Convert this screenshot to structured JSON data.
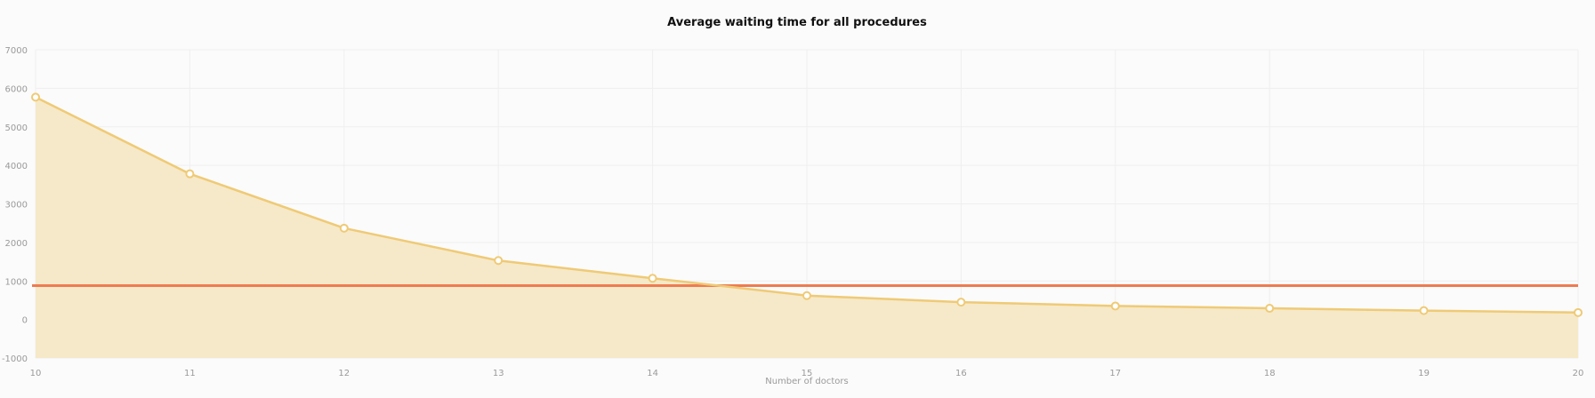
{
  "chart_data": {
    "type": "area",
    "title": "Average waiting time for all procedures",
    "xlabel": "Number of doctors",
    "ylabel": "",
    "x": [
      10,
      11,
      12,
      13,
      14,
      15,
      16,
      17,
      18,
      19,
      20
    ],
    "xlim": [
      10,
      20
    ],
    "ylim": [
      -1000,
      7000
    ],
    "y_ticks": [
      -1000,
      0,
      1000,
      2000,
      3000,
      4000,
      5000,
      6000,
      7000
    ],
    "x_ticks": [
      10,
      11,
      12,
      13,
      14,
      15,
      16,
      17,
      18,
      19,
      20
    ],
    "grid": true,
    "legend": "none",
    "series": [
      {
        "values": [
          5770,
          3780,
          2370,
          1530,
          1070,
          620,
          450,
          350,
          290,
          230,
          180
        ],
        "color": "#efca76",
        "fill": "#f6e9c9"
      }
    ],
    "reference_lines": [
      {
        "y": 880,
        "color": "#ee7b52"
      }
    ]
  }
}
